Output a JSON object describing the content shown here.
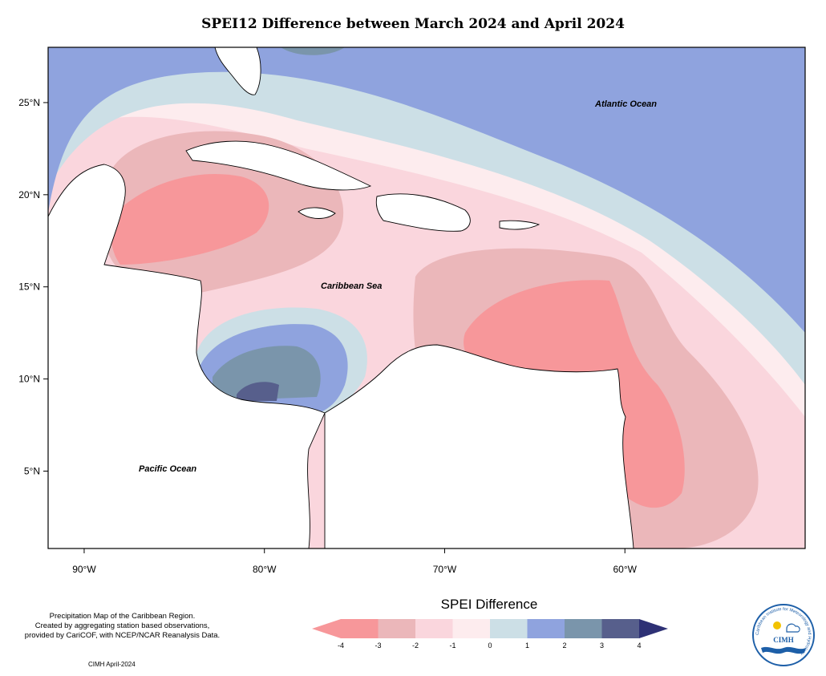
{
  "title": "SPEI12 Difference between March 2024 and April 2024",
  "map": {
    "lon_range": [
      -92,
      -50
    ],
    "lat_range": [
      0.8,
      28
    ],
    "lon_ticks": [
      {
        "lon": -90,
        "label": "90°W"
      },
      {
        "lon": -80,
        "label": "80°W"
      },
      {
        "lon": -70,
        "label": "70°W"
      },
      {
        "lon": -60,
        "label": "60°W"
      }
    ],
    "lat_ticks": [
      {
        "lat": 25,
        "label": "25°N"
      },
      {
        "lat": 20,
        "label": "20°N"
      },
      {
        "lat": 15,
        "label": "15°N"
      },
      {
        "lat": 10,
        "label": "10°N"
      },
      {
        "lat": 5,
        "label": "5°N"
      }
    ],
    "labels": {
      "atlantic": "Atlantic Ocean",
      "caribbean": "Caribbean Sea",
      "pacific": "Pacific Ocean"
    }
  },
  "legend": {
    "title": "SPEI Difference",
    "colors": [
      "#f7979a",
      "#ebb7ba",
      "#fad6dd",
      "#fdecee",
      "#ccdfe6",
      "#8fa3de",
      "#7a95ab",
      "#575f8c"
    ],
    "low_color": "#f7979a",
    "high_color": "#2e3175",
    "tick_labels": [
      "-4",
      "-3",
      "-2",
      "-1",
      "0",
      "1",
      "2",
      "3",
      "4"
    ]
  },
  "footnote": {
    "line1": "Precipitation Map of the Caribbean Region.",
    "line2": "Created by aggregating station based observations,",
    "line3": "provided by CariCOF, with NCEP/NCAR Reanalysis Data."
  },
  "credit": "CIMH April-2024",
  "logo": {
    "acronym": "CIMH",
    "ring_text": "Caribbean Institute for Meteorology and Hydrology"
  }
}
